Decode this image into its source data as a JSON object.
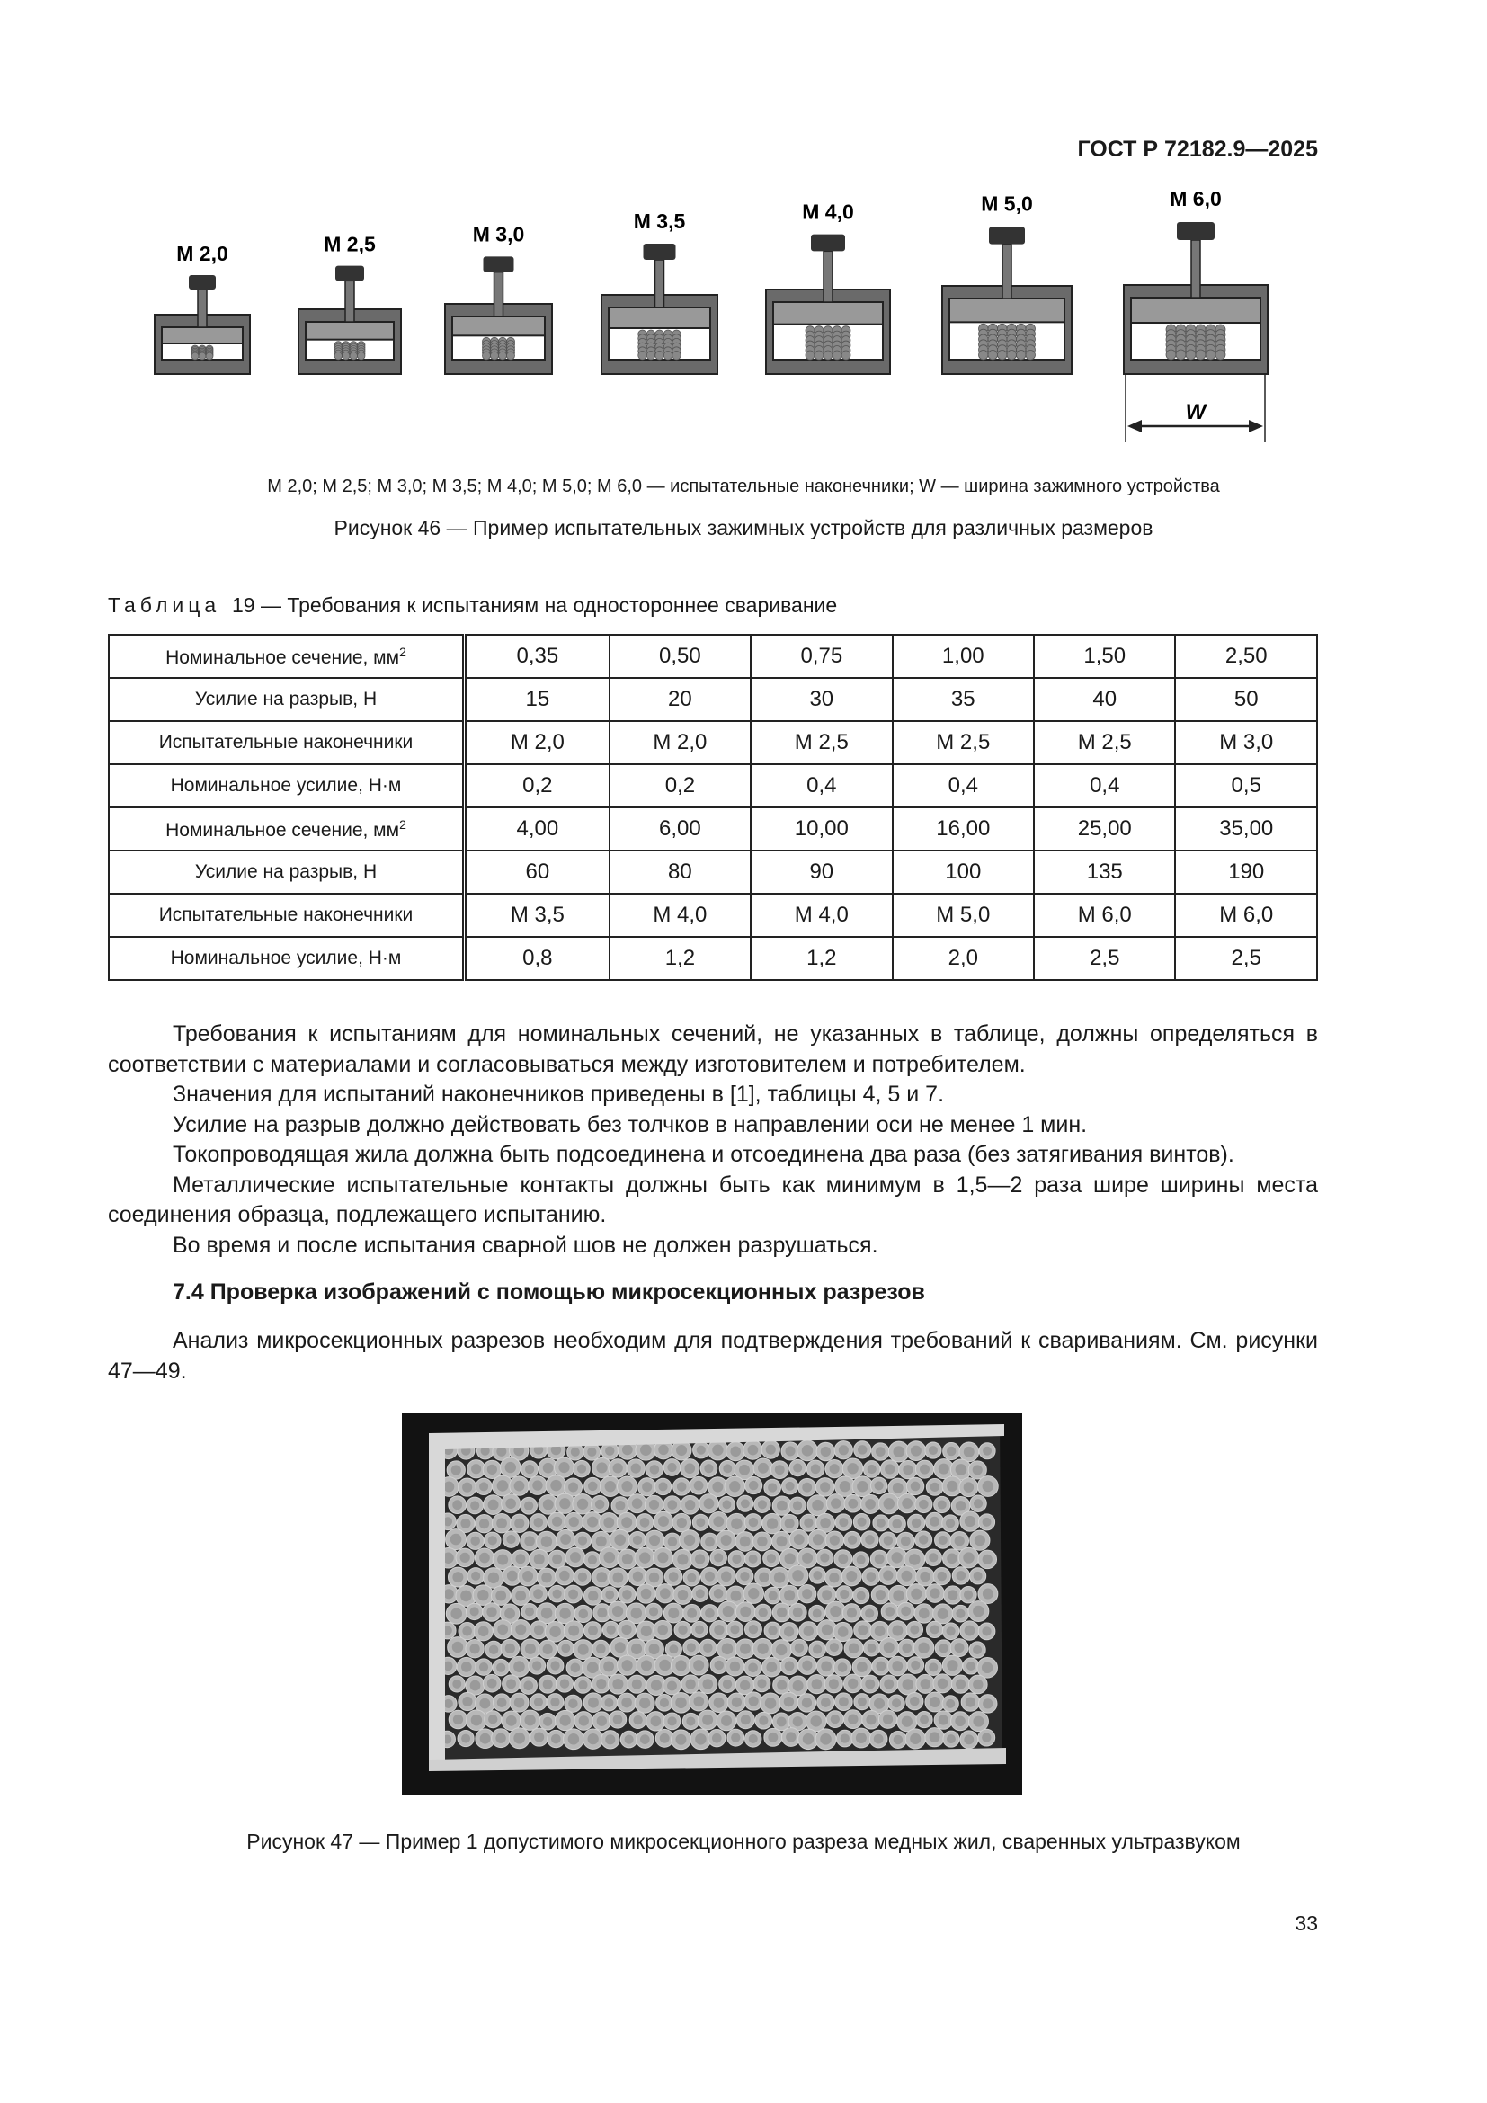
{
  "header": {
    "doc_id": "ГОСТ Р 72182.9—2025"
  },
  "figure46": {
    "clamps": [
      "M 2,0",
      "M 2,5",
      "M 3,0",
      "M 3,5",
      "M 4,0",
      "M 5,0",
      "M 6,0"
    ],
    "dimension_label": "W",
    "legend": "M 2,0; M 2,5; M 3,0; M 3,5; M 4,0; M 5,0; M 6,0 — испытательные наконечники; W — ширина зажимного устройства",
    "caption": "Рисунок 46 — Пример испытательных зажимных устройств для различных размеров"
  },
  "table19": {
    "caption_prefix": "Таблица",
    "caption": "19 — Требования к испытаниям на одностороннее сваривание",
    "rows": [
      {
        "label": "Номинальное сечение, мм",
        "sup": "2",
        "values": [
          "0,35",
          "0,50",
          "0,75",
          "1,00",
          "1,50",
          "2,50"
        ]
      },
      {
        "label": "Усилие на разрыв, Н",
        "values": [
          "15",
          "20",
          "30",
          "35",
          "40",
          "50"
        ]
      },
      {
        "label": "Испытательные наконечники",
        "values": [
          "М 2,0",
          "М 2,0",
          "М 2,5",
          "М 2,5",
          "М 2,5",
          "М 3,0"
        ]
      },
      {
        "label": "Номинальное усилие, Н·м",
        "values": [
          "0,2",
          "0,2",
          "0,4",
          "0,4",
          "0,4",
          "0,5"
        ]
      },
      {
        "label": "Номинальное сечение, мм",
        "sup": "2",
        "values": [
          "4,00",
          "6,00",
          "10,00",
          "16,00",
          "25,00",
          "35,00"
        ]
      },
      {
        "label": "Усилие на разрыв, Н",
        "values": [
          "60",
          "80",
          "90",
          "100",
          "135",
          "190"
        ]
      },
      {
        "label": "Испытательные наконечники",
        "values": [
          "М 3,5",
          "М 4,0",
          "М 4,0",
          "М 5,0",
          "М 6,0",
          "М 6,0"
        ]
      },
      {
        "label": "Номинальное усилие, Н·м",
        "values": [
          "0,8",
          "1,2",
          "1,2",
          "2,0",
          "2,5",
          "2,5"
        ]
      }
    ]
  },
  "paragraphs": [
    "Требования к испытаниям для номинальных сечений, не указанных в таблице, должны определяться в соответствии с материалами и согласовываться между изготовителем и потребителем.",
    "Значения для испытаний наконечников приведены в [1], таблицы 4, 5 и 7.",
    "Усилие на разрыв должно действовать без толчков в направлении оси не менее 1 мин.",
    "Токопроводящая жила должна быть подсоединена и отсоединена два раза (без затягивания винтов).",
    "Металлические испытательные контакты должны быть как минимум в 1,5—2 раза шире ширины места соединения образца, подлежащего испытанию.",
    "Во время и после испытания сварной шов не должен разрушаться."
  ],
  "section": {
    "heading": "7.4 Проверка изображений с помощью микросекционных разрезов",
    "text": "Анализ микросекционных разрезов необходим для подтверждения требований к свариваниям. См. рисунки 47—49."
  },
  "figure47": {
    "caption": "Рисунок 47 — Пример 1 допустимого микросекционного разреза медных жил, сваренных ультразвуком"
  },
  "page_number": "33"
}
